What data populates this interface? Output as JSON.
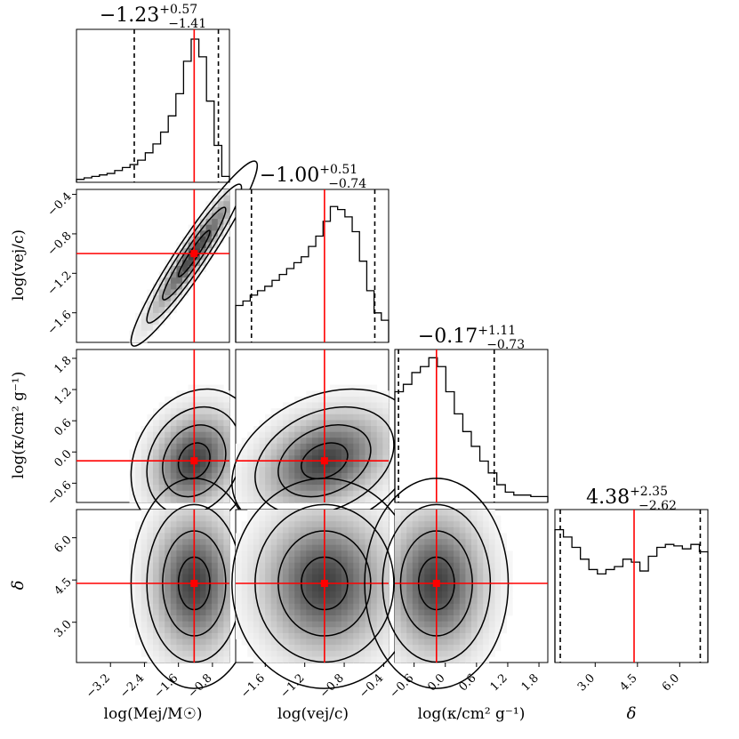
{
  "chart_data": {
    "type": "corner",
    "parameters": [
      {
        "name": "log(M_ej/M_sun)",
        "label": "log(Mej/M☉)",
        "median": -1.23,
        "plus": "+0.57",
        "minus": "−1.41",
        "median_label": "−1.23",
        "lo": -2.64,
        "hi": -0.66,
        "range": [
          -4.0,
          -0.4
        ],
        "ticks": [
          -3.2,
          -2.4,
          -1.6,
          -0.8
        ],
        "tick_labels": [
          "−3.2",
          "−2.4",
          "−1.6",
          "−0.8"
        ]
      },
      {
        "name": "log(v_ej/c)",
        "label": "log(vej/c)",
        "median": -1.0,
        "plus": "+0.51",
        "minus": "−0.74",
        "median_label": "−1.00",
        "lo": -1.74,
        "hi": -0.49,
        "range": [
          -1.9,
          -0.35
        ],
        "ticks": [
          -1.6,
          -1.2,
          -0.8,
          -0.4
        ],
        "tick_labels": [
          "−1.6",
          "−1.2",
          "−0.8",
          "−0.4"
        ]
      },
      {
        "name": "log(kappa/cm2 g-1)",
        "label": "log(κ/cm² g⁻¹)",
        "median": -0.17,
        "plus": "+1.11",
        "minus": "−0.73",
        "median_label": "−0.17",
        "lo": -0.9,
        "hi": 0.94,
        "range": [
          -0.97,
          1.97
        ],
        "ticks": [
          -0.6,
          0.0,
          0.6,
          1.2,
          1.8
        ],
        "tick_labels": [
          "−0.6",
          "0.0",
          "0.6",
          "1.2",
          "1.8"
        ]
      },
      {
        "name": "delta",
        "label": "δ",
        "median": 4.38,
        "plus": "+2.35",
        "minus": "−2.62",
        "median_label": "4.38",
        "lo": 1.76,
        "hi": 6.73,
        "range": [
          1.57,
          7.0
        ],
        "ticks": [
          3.0,
          4.5,
          6.0
        ],
        "tick_labels": [
          "3.0",
          "4.5",
          "6.0"
        ]
      }
    ],
    "y_tick_labels": {
      "log(v_ej/c)": [
        "−0.4",
        "−0.8",
        "−1.2",
        "−1.6"
      ],
      "log(kappa/cm2 g-1)": [
        "1.8",
        "1.2",
        "0.6",
        "0.0",
        "−0.6"
      ],
      "delta": [
        "6.0",
        "4.5",
        "3.0"
      ]
    },
    "histograms": {
      "log(M_ej/M_sun)": [
        0.02,
        0.03,
        0.04,
        0.05,
        0.06,
        0.08,
        0.1,
        0.12,
        0.15,
        0.2,
        0.26,
        0.34,
        0.45,
        0.6,
        0.82,
        0.97,
        0.85,
        0.55,
        0.25,
        0.04
      ],
      "log(v_ej/c)": [
        0.25,
        0.28,
        0.32,
        0.35,
        0.38,
        0.42,
        0.46,
        0.5,
        0.54,
        0.58,
        0.65,
        0.72,
        0.82,
        0.92,
        0.9,
        0.85,
        0.75,
        0.55,
        0.35,
        0.2,
        0.15
      ],
      "log(kappa/cm2 g-1)": [
        0.75,
        0.8,
        0.88,
        0.92,
        0.98,
        0.92,
        0.75,
        0.6,
        0.48,
        0.38,
        0.28,
        0.2,
        0.12,
        0.07,
        0.05,
        0.05,
        0.04,
        0.04
      ],
      "delta": [
        0.9,
        0.85,
        0.78,
        0.7,
        0.63,
        0.6,
        0.63,
        0.65,
        0.7,
        0.68,
        0.62,
        0.72,
        0.78,
        0.8,
        0.79,
        0.77,
        0.8,
        0.75
      ]
    },
    "colors": {
      "truth": "#ff0000",
      "contour": "#000000",
      "quantile": "#000000"
    },
    "grid": false
  }
}
